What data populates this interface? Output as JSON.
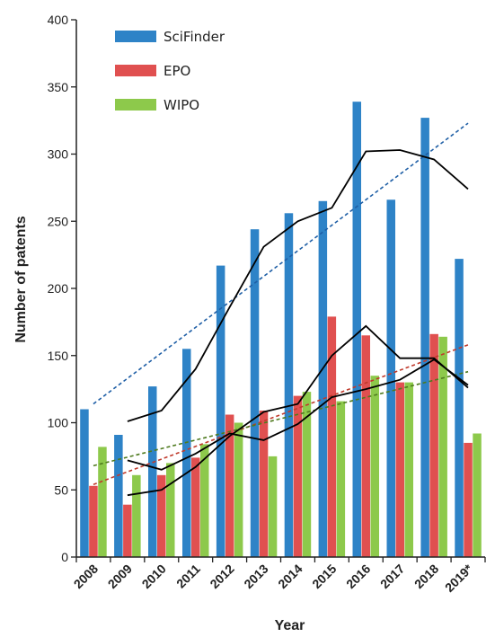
{
  "chart_data": {
    "type": "bar",
    "xlabel": "Year",
    "ylabel": "Number of patents",
    "ylim": [
      0,
      400
    ],
    "yticks": [
      0,
      50,
      100,
      150,
      200,
      250,
      300,
      350,
      400
    ],
    "categories": [
      "2008",
      "2009",
      "2010",
      "2011",
      "2012",
      "2013",
      "2014",
      "2015",
      "2016",
      "2017",
      "2018",
      "2019*"
    ],
    "legend_position": "top-left",
    "grid": false,
    "series": [
      {
        "name": "SciFinder",
        "color": "#2E83C7",
        "values": [
          110,
          91,
          127,
          155,
          217,
          244,
          256,
          265,
          339,
          266,
          327,
          222
        ]
      },
      {
        "name": "EPO",
        "color": "#E05050",
        "values": [
          53,
          39,
          61,
          74,
          106,
          109,
          120,
          179,
          165,
          130,
          166,
          85
        ]
      },
      {
        "name": "WIPO",
        "color": "#8DC94B",
        "values": [
          82,
          61,
          70,
          84,
          100,
          75,
          123,
          116,
          135,
          130,
          164,
          92
        ]
      }
    ],
    "moving_averages": [
      {
        "series": "SciFinder",
        "color": "#000000",
        "points": [
          [
            1,
            101
          ],
          [
            2,
            109
          ],
          [
            3,
            140
          ],
          [
            4,
            186
          ],
          [
            5,
            231
          ],
          [
            6,
            250
          ],
          [
            7,
            260
          ],
          [
            8,
            302
          ],
          [
            9,
            303
          ],
          [
            10,
            296
          ],
          [
            11,
            274
          ]
        ]
      },
      {
        "series": "EPO",
        "color": "#000000",
        "points": [
          [
            1,
            46
          ],
          [
            2,
            50
          ],
          [
            3,
            67
          ],
          [
            4,
            90
          ],
          [
            5,
            108
          ],
          [
            6,
            114
          ],
          [
            7,
            150
          ],
          [
            8,
            172
          ],
          [
            9,
            148
          ],
          [
            10,
            148
          ],
          [
            11,
            126
          ]
        ]
      },
      {
        "series": "WIPO",
        "color": "#000000",
        "points": [
          [
            1,
            72
          ],
          [
            2,
            65
          ],
          [
            3,
            77
          ],
          [
            4,
            92
          ],
          [
            5,
            87
          ],
          [
            6,
            99
          ],
          [
            7,
            119
          ],
          [
            8,
            125
          ],
          [
            9,
            132
          ],
          [
            10,
            147
          ],
          [
            11,
            128
          ]
        ]
      }
    ],
    "trendlines": [
      {
        "series": "SciFinder",
        "color": "#1F5FA6",
        "start": [
          0,
          114
        ],
        "end": [
          11,
          323
        ]
      },
      {
        "series": "EPO",
        "color": "#C0392B",
        "start": [
          0,
          54
        ],
        "end": [
          11,
          158
        ]
      },
      {
        "series": "WIPO",
        "color": "#4E7A1E",
        "start": [
          0,
          68
        ],
        "end": [
          11,
          138
        ]
      }
    ]
  }
}
